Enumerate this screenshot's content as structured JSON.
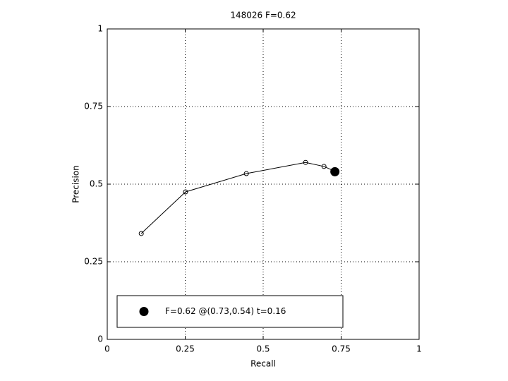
{
  "chart_data": {
    "type": "line",
    "title": "148026 F=0.62",
    "x_label": "Recall",
    "y_label": "Precision",
    "xlim": [
      0,
      1
    ],
    "xticks": [
      0,
      0.25,
      0.5,
      0.75,
      1
    ],
    "ylim": [
      0,
      1
    ],
    "yticks": [
      0,
      0.25,
      0.5,
      0.75,
      1
    ],
    "grid": true,
    "legend": "lower left",
    "series": [
      {
        "color": "#000000",
        "marker": "open",
        "x": [
          0.109,
          0.251,
          0.446,
          0.636,
          0.695,
          0.731
        ],
        "values": [
          0.341,
          0.475,
          0.534,
          0.57,
          0.557,
          0.541
        ]
      },
      {
        "name": "F=0.62 @(0.73,0.54) t=0.16",
        "color": "#000000",
        "marker": "filled",
        "x": [
          0.73
        ],
        "values": [
          0.54
        ]
      }
    ]
  }
}
